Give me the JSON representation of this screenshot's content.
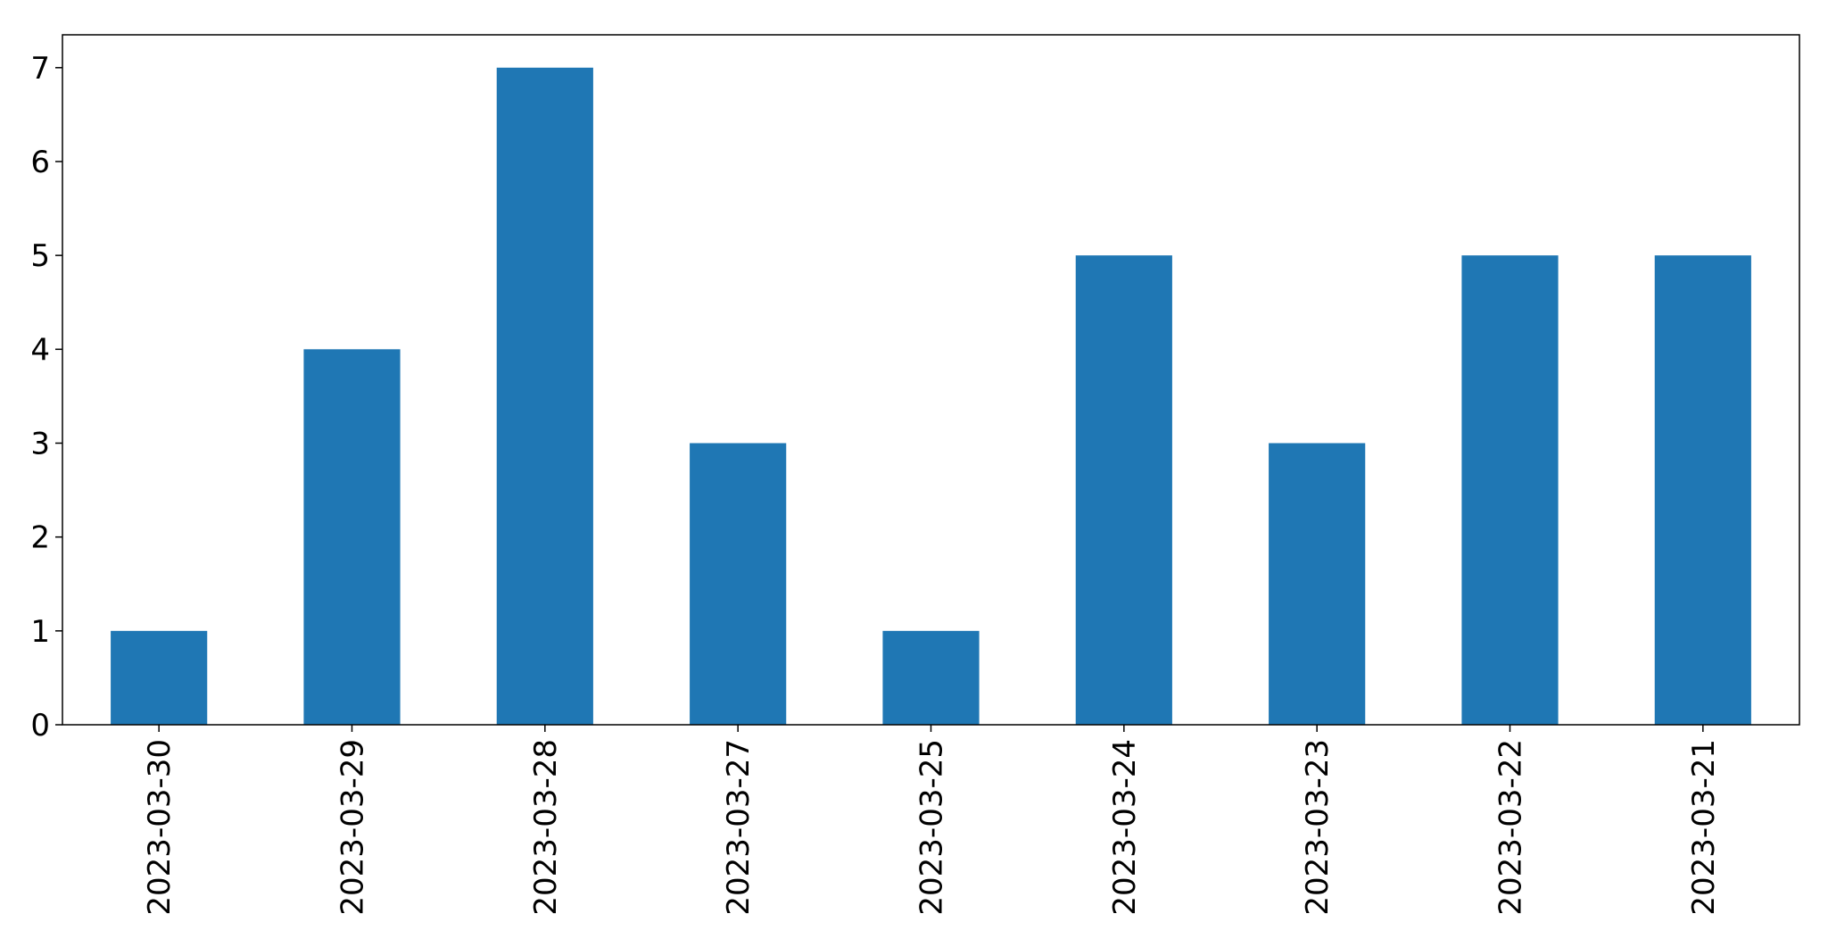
{
  "chart_data": {
    "type": "bar",
    "title": "",
    "xlabel": "",
    "ylabel": "",
    "categories": [
      "2023-03-30",
      "2023-03-29",
      "2023-03-28",
      "2023-03-27",
      "2023-03-25",
      "2023-03-24",
      "2023-03-23",
      "2023-03-22",
      "2023-03-21"
    ],
    "values": [
      1,
      4,
      7,
      3,
      1,
      5,
      3,
      5,
      5
    ],
    "ylim": [
      0,
      7.35
    ],
    "yticks": [
      "0",
      "1",
      "2",
      "3",
      "4",
      "5",
      "6",
      "7"
    ],
    "grid": false,
    "legend": "none",
    "bar_color": "#1f77b4"
  }
}
